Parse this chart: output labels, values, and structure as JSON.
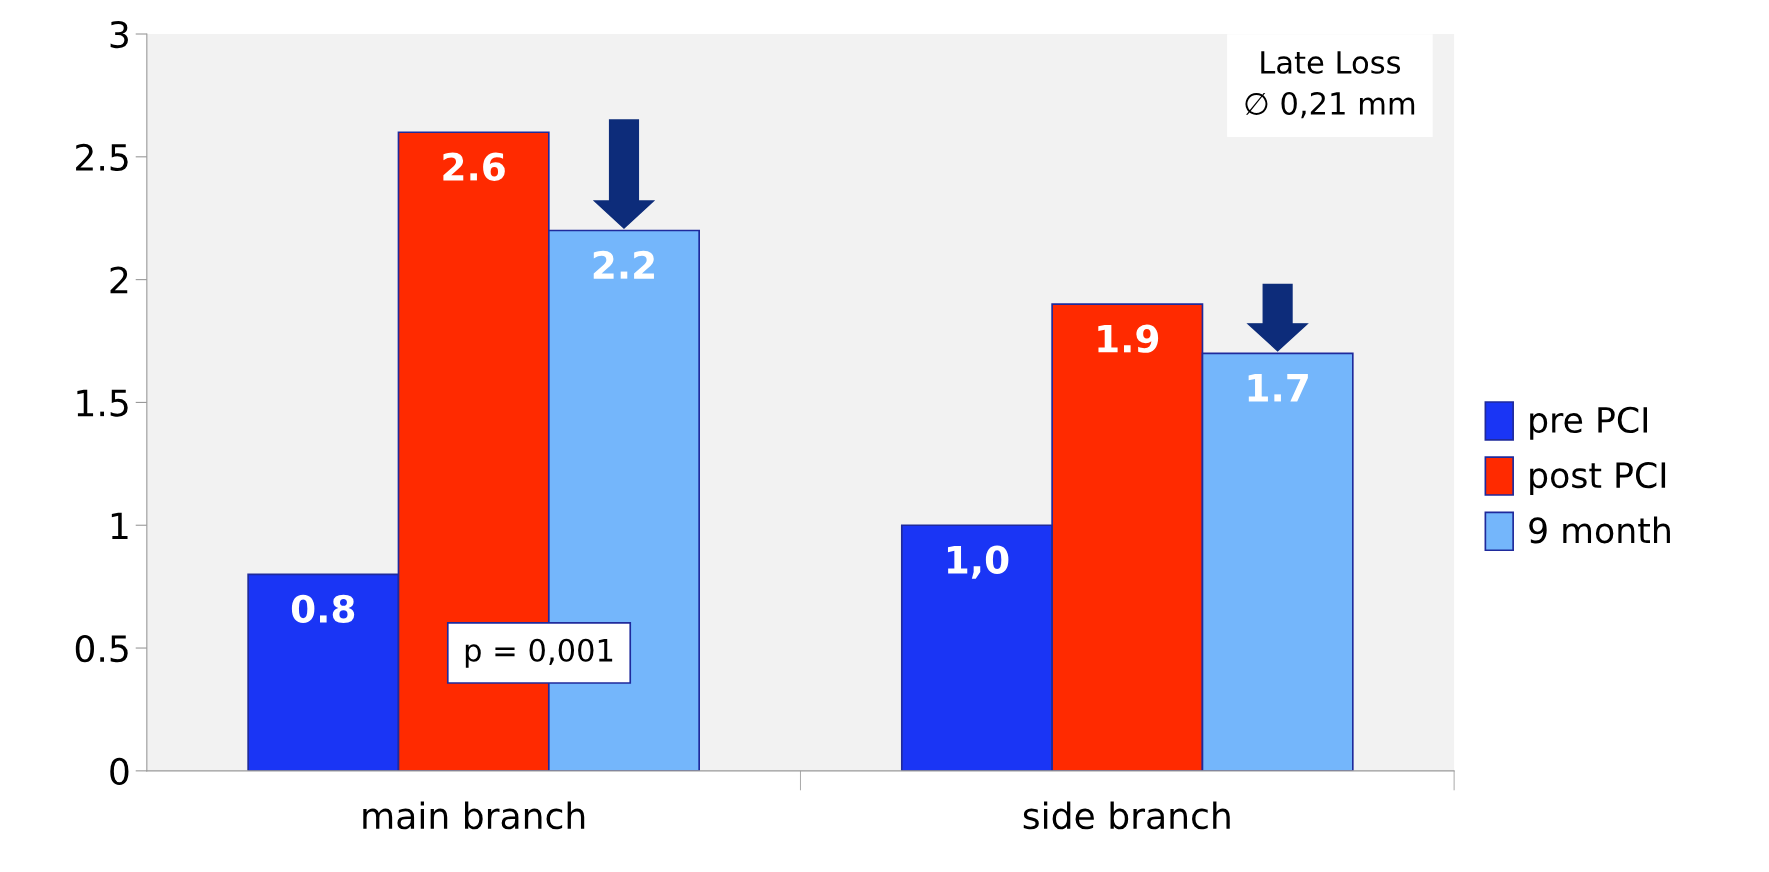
{
  "chart_data": {
    "type": "bar",
    "categories": [
      "main branch",
      "side branch"
    ],
    "series": [
      {
        "name": "pre PCI",
        "color": "#1a35f5",
        "values": [
          0.8,
          1.0
        ],
        "value_labels": [
          "0.8",
          "1,0"
        ]
      },
      {
        "name": "post PCI",
        "color": "#ff2a00",
        "values": [
          2.6,
          1.9
        ],
        "value_labels": [
          "2.6",
          "1.9"
        ]
      },
      {
        "name": "9 month",
        "color": "#74b6fb",
        "values": [
          2.2,
          1.7
        ],
        "value_labels": [
          "2.2",
          "1.7"
        ]
      }
    ],
    "ylim": [
      0,
      3
    ],
    "yticks": [
      0,
      0.5,
      1,
      1.5,
      2,
      2.5,
      3
    ],
    "grid": false,
    "legend": "right",
    "annotations": [
      "p = 0,001",
      "Late Loss\n∅ 0,21 mm"
    ]
  }
}
